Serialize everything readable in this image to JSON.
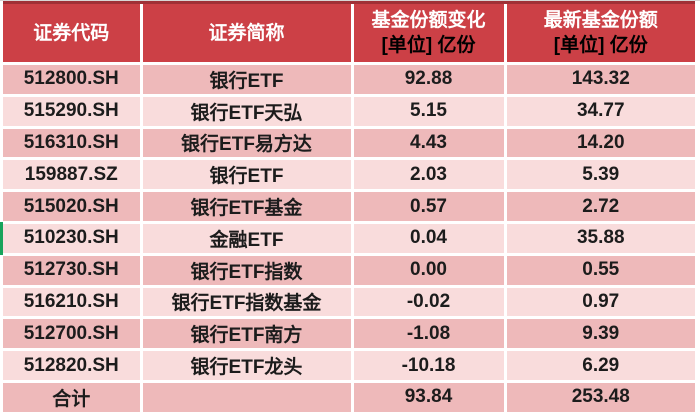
{
  "colors": {
    "header_bg": "#cc4046",
    "header_top_line": "#a03036",
    "page_top_line": "#d8d6d6",
    "row_dark": "#eeb9ba",
    "row_light": "#f9dcdc",
    "grid_white": "#ffffff",
    "header_text": "#ffffff",
    "header_unit_text": "#000000",
    "data_text": "#1c1c1c",
    "left_marker_green": "#18a35b"
  },
  "chart_data": {
    "type": "table",
    "header": {
      "col1": "证券代码",
      "col2": "证券简称",
      "col3_line1": "基金份额变化",
      "col3_line2": "[单位] 亿份",
      "col4_line1": "最新基金份额",
      "col4_line2": "[单位] 亿份"
    },
    "rows": [
      {
        "code": "512800.SH",
        "name": "银行ETF",
        "change": "92.88",
        "latest": "143.32"
      },
      {
        "code": "515290.SH",
        "name": "银行ETF天弘",
        "change": "5.15",
        "latest": "34.77"
      },
      {
        "code": "516310.SH",
        "name": "银行ETF易方达",
        "change": "4.43",
        "latest": "14.20"
      },
      {
        "code": "159887.SZ",
        "name": "银行ETF",
        "change": "2.03",
        "latest": "5.39"
      },
      {
        "code": "515020.SH",
        "name": "银行ETF基金",
        "change": "0.57",
        "latest": "2.72"
      },
      {
        "code": "510230.SH",
        "name": "金融ETF",
        "change": "0.04",
        "latest": "35.88"
      },
      {
        "code": "512730.SH",
        "name": "银行ETF指数",
        "change": "0.00",
        "latest": "0.55"
      },
      {
        "code": "516210.SH",
        "name": "银行ETF指数基金",
        "change": "-0.02",
        "latest": "0.97"
      },
      {
        "code": "512700.SH",
        "name": "银行ETF南方",
        "change": "-1.08",
        "latest": "9.39"
      },
      {
        "code": "512820.SH",
        "name": "银行ETF龙头",
        "change": "-10.18",
        "latest": "6.29"
      }
    ],
    "total": {
      "label": "合计",
      "name": "",
      "change": "93.84",
      "latest": "253.48"
    }
  }
}
